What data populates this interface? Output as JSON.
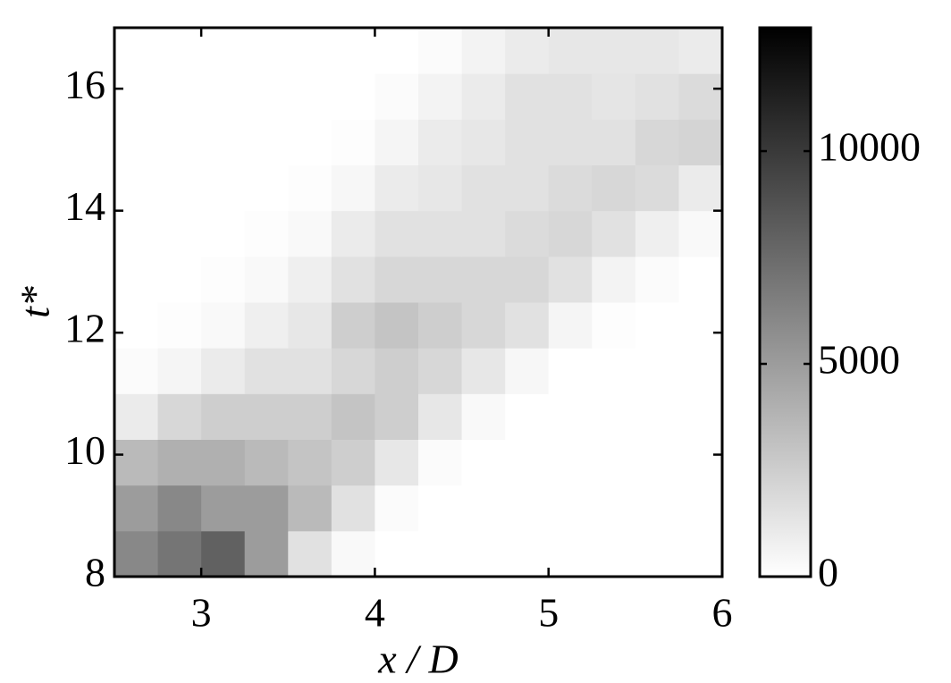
{
  "chart_data": {
    "type": "heatmap",
    "x_label": "x / D",
    "y_label": "t*",
    "xlim": [
      2.5,
      6
    ],
    "xticks": [
      3,
      4,
      5,
      6
    ],
    "ylim": [
      8,
      17
    ],
    "yticks": [
      8,
      10,
      12,
      14,
      16
    ],
    "colormap": [
      "#ffffff",
      "#000000"
    ],
    "colorbar": {
      "lim": [
        0,
        12900
      ],
      "ticks": [
        0,
        5000,
        10000
      ]
    },
    "z": [
      [
        6000,
        7000,
        8000,
        5000,
        1500,
        300,
        0,
        0,
        0,
        0,
        0,
        0,
        0,
        0
      ],
      [
        5000,
        6000,
        5000,
        5000,
        3500,
        1500,
        200,
        0,
        0,
        0,
        0,
        0,
        0,
        0
      ],
      [
        3500,
        4000,
        4000,
        3500,
        3000,
        2500,
        1200,
        200,
        0,
        0,
        0,
        0,
        0,
        0
      ],
      [
        1000,
        2000,
        2500,
        2500,
        2500,
        3000,
        2500,
        1200,
        300,
        0,
        0,
        0,
        0,
        0
      ],
      [
        200,
        500,
        1000,
        1500,
        1500,
        2000,
        2500,
        2000,
        1200,
        400,
        0,
        0,
        0,
        0
      ],
      [
        0,
        100,
        300,
        800,
        1200,
        2500,
        3000,
        2500,
        2000,
        1500,
        500,
        100,
        0,
        0
      ],
      [
        0,
        0,
        100,
        300,
        800,
        1500,
        2000,
        2000,
        2000,
        2000,
        1500,
        600,
        200,
        0
      ],
      [
        0,
        0,
        0,
        100,
        300,
        1000,
        1500,
        1500,
        1500,
        1800,
        2000,
        1500,
        800,
        300
      ],
      [
        0,
        0,
        0,
        0,
        100,
        400,
        1000,
        1200,
        1500,
        1500,
        1800,
        2000,
        1800,
        1000
      ],
      [
        0,
        0,
        0,
        0,
        0,
        100,
        500,
        1000,
        1200,
        1500,
        1500,
        1500,
        2000,
        2200
      ],
      [
        0,
        0,
        0,
        0,
        0,
        0,
        200,
        600,
        1000,
        1500,
        1500,
        1300,
        1500,
        1800
      ],
      [
        0,
        0,
        0,
        0,
        0,
        0,
        0,
        200,
        600,
        1000,
        1200,
        1200,
        1200,
        1000
      ]
    ]
  }
}
